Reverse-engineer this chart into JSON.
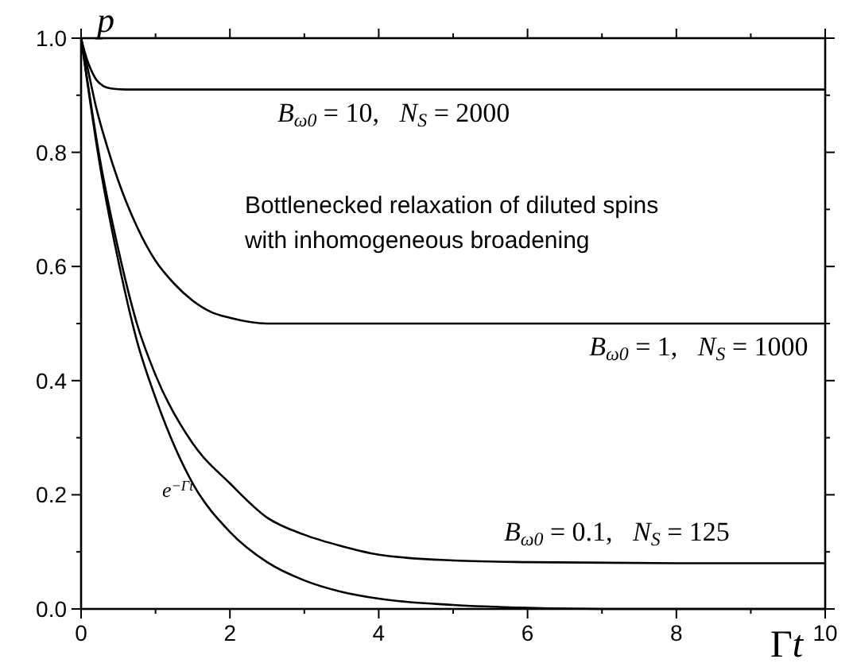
{
  "chart_data": {
    "type": "line",
    "xlabel": "Γt",
    "ylabel": "p",
    "annotations": [
      "Bottlenecked relaxation of diluted spins\nwith inhomogeneous broadening"
    ],
    "xlim": [
      0,
      10
    ],
    "ylim": [
      0,
      1
    ],
    "xticks": [
      0,
      {
        "value": 1,
        "label": null
      },
      2,
      {
        "value": 3,
        "label": null
      },
      4,
      {
        "value": 5,
        "label": null
      },
      6,
      {
        "value": 7,
        "label": null
      },
      8,
      {
        "value": 9,
        "label": null
      },
      10
    ],
    "yticks": [
      {
        "value": 0,
        "label": "0.0"
      },
      {
        "value": 0.1,
        "label": null
      },
      0.2,
      {
        "value": 0.3,
        "label": null
      },
      0.4,
      {
        "value": 0.5,
        "label": null
      },
      0.6,
      {
        "value": 0.7,
        "label": null
      },
      0.8,
      {
        "value": 0.9,
        "label": null
      },
      {
        "value": 1,
        "label": "1.0"
      }
    ],
    "series": [
      {
        "name": "B$_{ω0}$ = 10,   N$_{S}$ = 2000",
        "color": "#000000",
        "x": [
          0,
          0.05,
          0.1,
          0.15,
          0.2,
          0.3,
          0.4,
          0.6,
          1,
          3,
          6,
          10
        ],
        "values": [
          1,
          0.975,
          0.955,
          0.94,
          0.928,
          0.916,
          0.912,
          0.91,
          0.91,
          0.91,
          0.91,
          0.91
        ]
      },
      {
        "name": "B$_{ω0}$ = 1,   N$_{S}$ = 1000",
        "color": "#000000",
        "x": [
          0,
          0.1,
          0.2,
          0.35,
          0.5,
          0.75,
          1,
          1.25,
          1.5,
          1.75,
          2,
          2.5,
          3,
          4,
          6,
          10
        ],
        "values": [
          1,
          0.94,
          0.88,
          0.81,
          0.75,
          0.67,
          0.61,
          0.57,
          0.54,
          0.52,
          0.51,
          0.5,
          0.5,
          0.5,
          0.5,
          0.5
        ]
      },
      {
        "name": "B$_{ω0}$ = 0.1,   N$_{S}$ = 125",
        "color": "#000000",
        "x": [
          0,
          0.25,
          0.5,
          0.75,
          1,
          1.5,
          2,
          2.5,
          3,
          3.5,
          4,
          5,
          6,
          8,
          10
        ],
        "values": [
          1,
          0.79,
          0.63,
          0.5,
          0.41,
          0.29,
          0.22,
          0.16,
          0.13,
          0.11,
          0.095,
          0.085,
          0.082,
          0.08,
          0.08
        ]
      },
      {
        "name": "e$^{−Γt}$",
        "color": "#000000",
        "x": [
          0,
          0.25,
          0.5,
          0.75,
          1,
          1.5,
          2,
          2.5,
          3,
          3.5,
          4,
          5,
          6,
          7,
          8,
          10
        ],
        "values": [
          1,
          0.78,
          0.61,
          0.47,
          0.37,
          0.22,
          0.135,
          0.082,
          0.05,
          0.03,
          0.018,
          0.007,
          0.002,
          0,
          0,
          0
        ]
      }
    ]
  }
}
